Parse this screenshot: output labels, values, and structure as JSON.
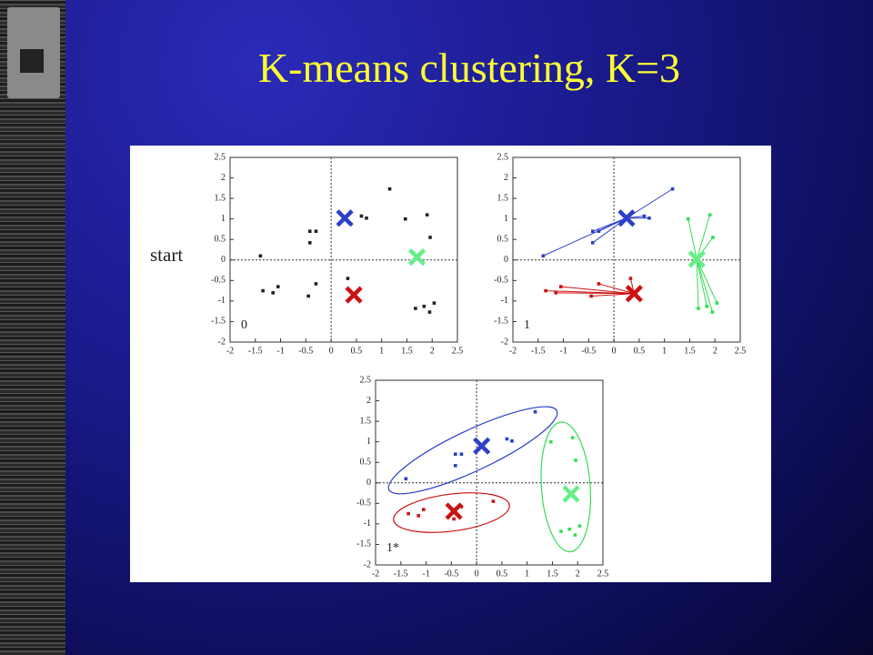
{
  "title": "K-means clustering, K=3",
  "row_label": "start",
  "chart_data": [
    {
      "type": "scatter",
      "annotation": "0",
      "xlim": [
        -2,
        2.5
      ],
      "ylim": [
        -2,
        2.5
      ],
      "xticks": [
        -2,
        -1.5,
        -1,
        -0.5,
        0,
        0.5,
        1,
        1.5,
        2,
        2.5
      ],
      "yticks": [
        -2,
        -1.5,
        -1,
        -0.5,
        0,
        0.5,
        1,
        1.5,
        2,
        2.5
      ],
      "zero_lines": true,
      "links": false,
      "outline": false,
      "series": [
        {
          "color": "#222222",
          "x": [
            -1.4,
            -1.35,
            -1.15,
            -1.05,
            -0.42,
            -0.3,
            -0.42,
            -0.3,
            -0.45,
            0.33,
            0.6,
            0.7,
            1.16,
            1.47,
            1.9,
            1.96,
            1.67,
            1.84,
            1.95,
            2.04
          ],
          "y": [
            0.1,
            -0.75,
            -0.8,
            -0.65,
            0.7,
            0.7,
            0.42,
            -0.58,
            -0.88,
            -0.45,
            1.07,
            1.02,
            1.73,
            1.0,
            1.1,
            0.55,
            -1.18,
            -1.13,
            -1.27,
            -1.05
          ],
          "centroid": null
        }
      ],
      "centroids": [
        {
          "color": "#2b3fc8",
          "x": 0.27,
          "y": 1.02
        },
        {
          "color": "#66ee88",
          "x": 1.7,
          "y": 0.07
        },
        {
          "color": "#cc1111",
          "x": 0.45,
          "y": -0.85
        }
      ]
    },
    {
      "type": "scatter",
      "annotation": "1",
      "xlim": [
        -2,
        2.5
      ],
      "ylim": [
        -2,
        2.5
      ],
      "xticks": [
        -2,
        -1.5,
        -1,
        -0.5,
        0,
        0.5,
        1,
        1.5,
        2,
        2.5
      ],
      "yticks": [
        -2,
        -1.5,
        -1,
        -0.5,
        0,
        0.5,
        1,
        1.5,
        2,
        2.5
      ],
      "zero_lines": true,
      "links": true,
      "outline": false,
      "series": [
        {
          "color": "#2b3fc8",
          "x": [
            -1.4,
            -0.42,
            -0.3,
            -0.42,
            0.6,
            0.7,
            1.16
          ],
          "y": [
            0.1,
            0.7,
            0.7,
            0.42,
            1.07,
            1.02,
            1.73
          ],
          "centroid": 0
        },
        {
          "color": "#cc1111",
          "x": [
            -1.35,
            -1.15,
            -1.05,
            -0.3,
            -0.45,
            0.33
          ],
          "y": [
            -0.75,
            -0.8,
            -0.65,
            -0.58,
            -0.88,
            -0.45
          ],
          "centroid": 2
        },
        {
          "color": "#33dd55",
          "x": [
            1.47,
            1.9,
            1.96,
            1.67,
            1.84,
            1.95,
            2.04
          ],
          "y": [
            1.0,
            1.1,
            0.55,
            -1.18,
            -1.13,
            -1.27,
            -1.05
          ],
          "centroid": 1
        }
      ],
      "centroids": [
        {
          "color": "#2b3fc8",
          "x": 0.25,
          "y": 1.02
        },
        {
          "color": "#66ee88",
          "x": 1.64,
          "y": 0.02
        },
        {
          "color": "#cc1111",
          "x": 0.4,
          "y": -0.82
        }
      ]
    },
    {
      "type": "scatter",
      "annotation": "1*",
      "xlim": [
        -2,
        2.5
      ],
      "ylim": [
        -2,
        2.5
      ],
      "xticks": [
        -2,
        -1.5,
        -1,
        -0.5,
        0,
        0.5,
        1,
        1.5,
        2,
        2.5
      ],
      "yticks": [
        -2,
        -1.5,
        -1,
        -0.5,
        0,
        0.5,
        1,
        1.5,
        2,
        2.5
      ],
      "zero_lines": true,
      "links": false,
      "outline": true,
      "series": [
        {
          "color": "#2b3fc8",
          "x": [
            -1.4,
            -0.42,
            -0.3,
            -0.42,
            0.6,
            0.7,
            1.16
          ],
          "y": [
            0.1,
            0.7,
            0.7,
            0.42,
            1.07,
            1.02,
            1.73
          ],
          "centroid": 0
        },
        {
          "color": "#cc1111",
          "x": [
            -1.35,
            -1.15,
            -1.05,
            -0.3,
            -0.45,
            0.33
          ],
          "y": [
            -0.75,
            -0.8,
            -0.65,
            -0.58,
            -0.88,
            -0.45
          ],
          "centroid": 2
        },
        {
          "color": "#33dd55",
          "x": [
            1.47,
            1.9,
            1.96,
            1.67,
            1.84,
            1.95,
            2.04
          ],
          "y": [
            1.0,
            1.1,
            0.55,
            -1.18,
            -1.13,
            -1.27,
            -1.05
          ],
          "centroid": 1
        }
      ],
      "centroids": [
        {
          "color": "#2b3fc8",
          "x": 0.1,
          "y": 0.9
        },
        {
          "color": "#66ee88",
          "x": 1.87,
          "y": -0.27
        },
        {
          "color": "#cc1111",
          "x": -0.45,
          "y": -0.69
        }
      ]
    }
  ]
}
